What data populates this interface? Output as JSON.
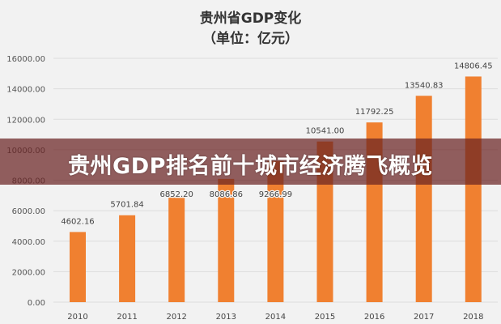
{
  "chart_data": {
    "type": "bar",
    "title": "贵州省GDP变化",
    "subtitle": "（单位：亿元）",
    "xlabel": "",
    "ylabel": "",
    "categories": [
      "2010",
      "2011",
      "2012",
      "2013",
      "2014",
      "2015",
      "2016",
      "2017",
      "2018"
    ],
    "values": [
      4602.16,
      5701.84,
      6852.2,
      8086.86,
      9266.99,
      10541.0,
      11792.25,
      13540.83,
      14806.45
    ],
    "value_labels": [
      "4602.16",
      "5701.84",
      "6852.20",
      "8086.86",
      "9266.99",
      "10541.00",
      "11792.25",
      "13540.83",
      "14806.45"
    ],
    "ylim": [
      0,
      16000
    ],
    "yticks": [
      "0.00",
      "2000.00",
      "4000.00",
      "6000.00",
      "8000.00",
      "10000.00",
      "12000.00",
      "14000.00",
      "16000.00"
    ],
    "grid": true,
    "bar_color": "#f08030"
  },
  "banner": {
    "text": "贵州GDP排名前十城市经济腾飞概览"
  }
}
